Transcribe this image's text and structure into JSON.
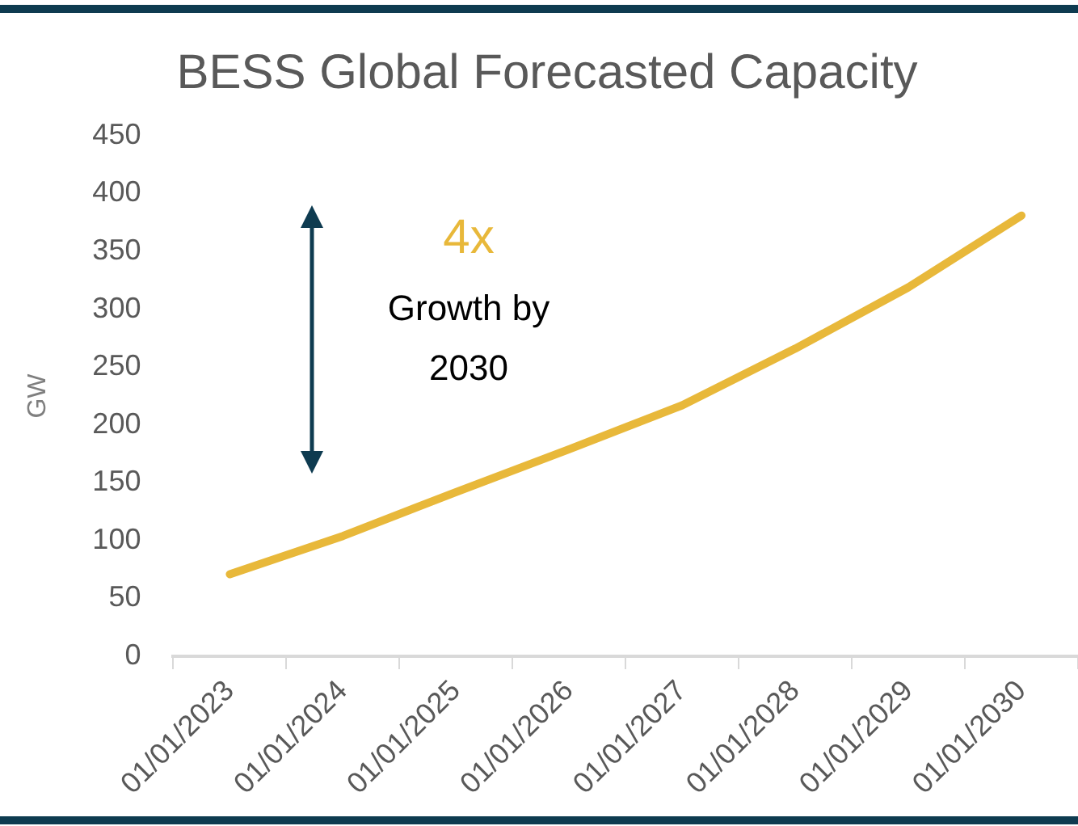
{
  "chart_data": {
    "type": "line",
    "title": "BESS Global Forecasted Capacity",
    "ylabel": "GW",
    "categories": [
      "01/01/2023",
      "01/01/2024",
      "01/01/2025",
      "01/01/2026",
      "01/01/2027",
      "01/01/2028",
      "01/01/2029",
      "01/01/2030"
    ],
    "series": [
      {
        "color": "#e8b83a",
        "values": [
          71,
          104,
          142,
          179,
          217,
          266,
          319,
          381
        ]
      }
    ],
    "ylim": [
      0,
      450
    ],
    "yticks": [
      0,
      50,
      100,
      150,
      200,
      250,
      300,
      350,
      400,
      450
    ],
    "annotations": [
      "4x",
      "Growth by 2030"
    ],
    "grid": false,
    "legend": false,
    "marker": "none",
    "line_style": "solid"
  }
}
